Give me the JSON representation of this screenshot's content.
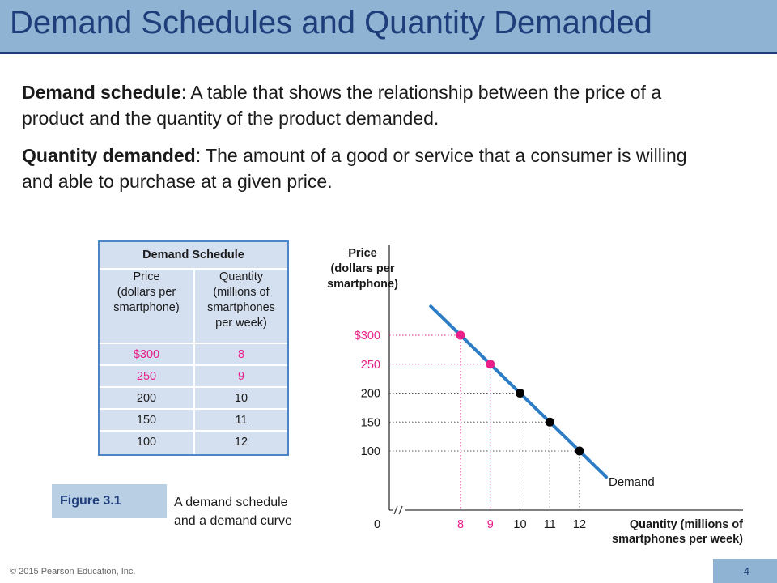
{
  "slide": {
    "title": "Demand Schedules and Quantity Demanded",
    "def1_term": "Demand schedule",
    "def1_text": ": A table that shows the relationship between the price of a product and the quantity of the product demanded.",
    "def2_term": "Quantity demanded",
    "def2_text": ": The amount of a good or service that a consumer is willing and able to purchase at a given price.",
    "figure_label": "Figure 3.1",
    "figure_caption_line1": "A demand schedule",
    "figure_caption_line2": "and a demand curve",
    "footer": "© 2015 Pearson Education, Inc.",
    "page_number": "4"
  },
  "colors": {
    "title_bar": "#8fb4d3",
    "title_text": "#1f3d7a",
    "highlight": "#e8208a",
    "curve": "#2d7dc6",
    "table_bg": "#d4dff0",
    "table_border": "#4d86c5"
  },
  "chart_data": [
    {
      "type": "table",
      "title": "Demand Schedule",
      "columns": [
        "Price (dollars per smartphone)",
        "Quantity (millions of smartphones per week)"
      ],
      "column_lines": [
        [
          "Price",
          "(dollars per",
          "smartphone)"
        ],
        [
          "Quantity",
          "(millions of",
          "smartphones",
          "per week)"
        ]
      ],
      "rows": [
        {
          "price": "$300",
          "quantity": "8",
          "highlight": true
        },
        {
          "price": "250",
          "quantity": "9",
          "highlight": true
        },
        {
          "price": "200",
          "quantity": "10",
          "highlight": false
        },
        {
          "price": "150",
          "quantity": "11",
          "highlight": false
        },
        {
          "price": "100",
          "quantity": "12",
          "highlight": false
        }
      ]
    },
    {
      "type": "line",
      "ylabel_lines": [
        "Price",
        "(dollars per",
        "smartphone)"
      ],
      "xlabel_lines": [
        "Quantity (millions of",
        "smartphones per week)"
      ],
      "origin_label": "0",
      "series": [
        {
          "name": "Demand",
          "x": [
            8,
            9,
            10,
            11,
            12
          ],
          "y": [
            300,
            250,
            200,
            150,
            100
          ],
          "line_extends": [
            7.0,
            12.9
          ]
        }
      ],
      "points": [
        {
          "x": 8,
          "y": 300,
          "highlight": true
        },
        {
          "x": 9,
          "y": 250,
          "highlight": true
        },
        {
          "x": 10,
          "y": 200,
          "highlight": false
        },
        {
          "x": 11,
          "y": 150,
          "highlight": false
        },
        {
          "x": 12,
          "y": 100,
          "highlight": false
        }
      ],
      "x_ticks": [
        "8",
        "9",
        "10",
        "11",
        "12"
      ],
      "y_ticks": [
        "$300",
        "250",
        "200",
        "150",
        "100"
      ],
      "axis_break": true,
      "grid": false,
      "dotted_guides": true
    }
  ]
}
